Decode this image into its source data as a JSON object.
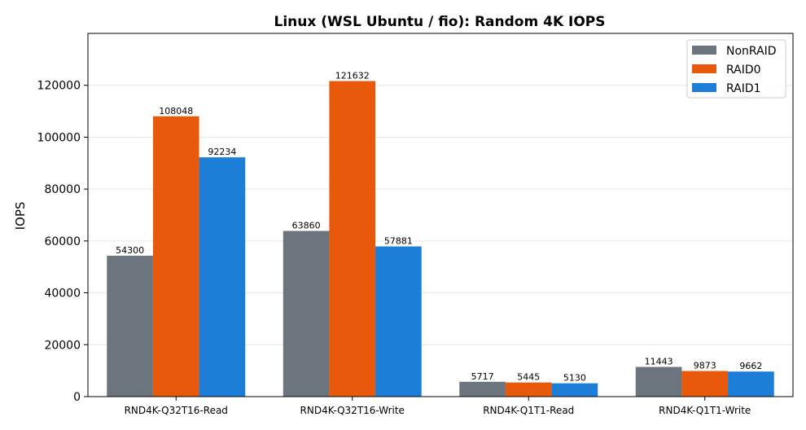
{
  "chart_data": {
    "type": "bar",
    "title": "Linux (WSL Ubuntu / fio): Random 4K IOPS",
    "xlabel": "",
    "ylabel": "IOPS",
    "ylim": [
      0,
      140000
    ],
    "yticks": [
      0,
      20000,
      40000,
      60000,
      80000,
      100000,
      120000
    ],
    "grid": "horizontal",
    "legend_position": "top-right",
    "categories": [
      "RND4K-Q32T16-Read",
      "RND4K-Q32T16-Write",
      "RND4K-Q1T1-Read",
      "RND4K-Q1T1-Write"
    ],
    "series": [
      {
        "name": "NonRAID",
        "color": "#6c757d",
        "values": [
          54300,
          63860,
          5717,
          11443
        ]
      },
      {
        "name": "RAID0",
        "color": "#e8590c",
        "values": [
          108048,
          121632,
          5445,
          9873
        ]
      },
      {
        "name": "RAID1",
        "color": "#1c7ed6",
        "values": [
          92234,
          57881,
          5130,
          9662
        ]
      }
    ]
  }
}
